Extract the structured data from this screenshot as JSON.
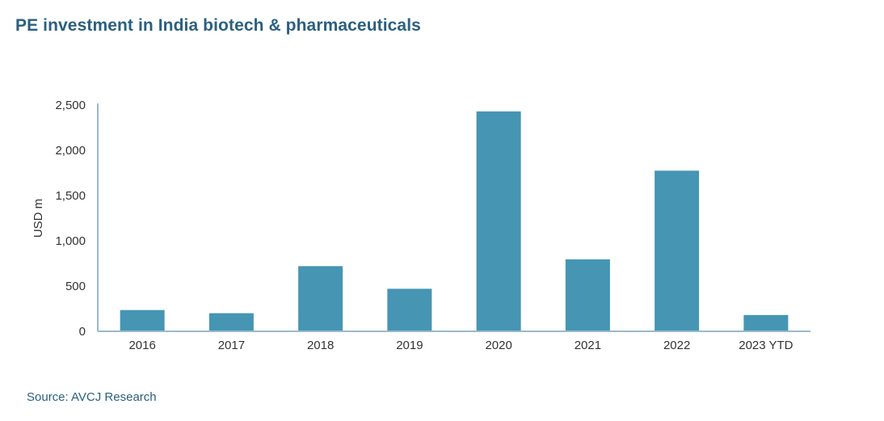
{
  "title": "PE investment in India biotech & pharmaceuticals",
  "source": "Source: AVCJ Research",
  "colors": {
    "bar": "#4595b3",
    "axis": "#9ab8cc",
    "title": "#2b5f80"
  },
  "chart_data": {
    "type": "bar",
    "title": "PE investment in India biotech & pharmaceuticals",
    "xlabel": "",
    "ylabel": "USD m",
    "categories": [
      "2016",
      "2017",
      "2018",
      "2019",
      "2020",
      "2021",
      "2022",
      "2023 YTD"
    ],
    "values": [
      235,
      200,
      720,
      470,
      2430,
      795,
      1775,
      180
    ],
    "ylim": [
      0,
      2500
    ],
    "yticks": [
      0,
      500,
      1000,
      1500,
      2000,
      2500
    ],
    "ytick_labels": [
      "0",
      "500",
      "1,000",
      "1,500",
      "2,000",
      "2,500"
    ],
    "grid": false,
    "legend": "none"
  }
}
